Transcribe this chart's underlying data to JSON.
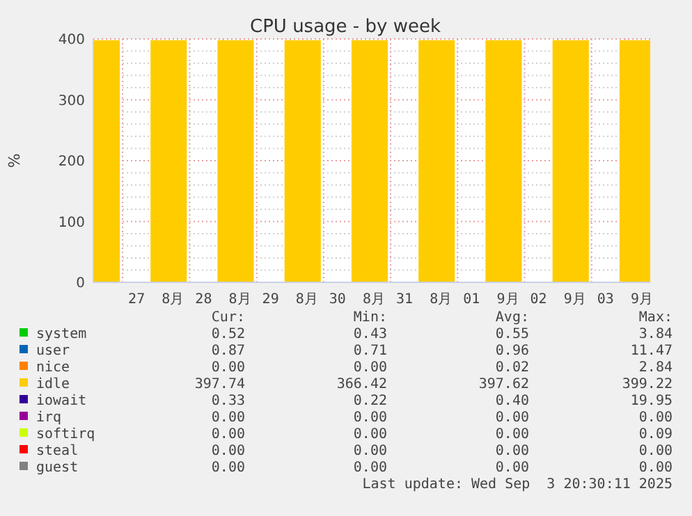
{
  "chart_data": {
    "type": "area",
    "title": "CPU usage - by week",
    "ylabel": "%",
    "legend": "bottom",
    "grid": true,
    "x": [
      "2025-08-26T13:30",
      "2025-08-26T18:00",
      "2025-08-26T23:00",
      "2025-08-27T04:00",
      "2025-08-27T10:00",
      "2025-08-27T16:30",
      "2025-08-27T23:00",
      "2025-08-28T04:00",
      "2025-08-28T10:00",
      "2025-08-28T16:30",
      "2025-08-28T23:00",
      "2025-08-29T04:00",
      "2025-08-29T10:00",
      "2025-08-29T16:30",
      "2025-08-29T23:00",
      "2025-08-30T04:00",
      "2025-08-30T10:00",
      "2025-08-30T16:30",
      "2025-08-30T23:00",
      "2025-08-31T04:00",
      "2025-08-31T10:00",
      "2025-08-31T16:30",
      "2025-08-31T23:00",
      "2025-09-01T04:00",
      "2025-09-01T10:00",
      "2025-09-01T16:30",
      "2025-09-01T23:00",
      "2025-09-02T04:00",
      "2025-09-02T10:00",
      "2025-09-02T16:30",
      "2025-09-02T23:00",
      "2025-09-03T04:00",
      "2025-09-03T10:00",
      "2025-09-03T16:30",
      "2025-09-03T21:00"
    ],
    "xlim": [
      "2025-08-26T13:30",
      "2025-09-03T21:00"
    ],
    "xticks": [
      {
        "value": "2025-08-27T00:00",
        "label": null
      },
      {
        "value": "2025-08-27T12:00",
        "label": "27  8月"
      },
      {
        "value": "2025-08-28T00:00",
        "label": null
      },
      {
        "value": "2025-08-28T12:00",
        "label": "28  8月"
      },
      {
        "value": "2025-08-29T00:00",
        "label": null
      },
      {
        "value": "2025-08-29T12:00",
        "label": "29  8月"
      },
      {
        "value": "2025-08-30T00:00",
        "label": null
      },
      {
        "value": "2025-08-30T12:00",
        "label": "30  8月"
      },
      {
        "value": "2025-08-31T00:00",
        "label": null
      },
      {
        "value": "2025-08-31T12:00",
        "label": "31  8月"
      },
      {
        "value": "2025-09-01T00:00",
        "label": null
      },
      {
        "value": "2025-09-01T12:00",
        "label": "01  9月"
      },
      {
        "value": "2025-09-02T00:00",
        "label": null
      },
      {
        "value": "2025-09-02T12:00",
        "label": "02  9月"
      },
      {
        "value": "2025-09-03T00:00",
        "label": null
      },
      {
        "value": "2025-09-03T12:00",
        "label": "03  9月"
      }
    ],
    "ylim": [
      0,
      400
    ],
    "yticks": [
      0,
      {
        "value": 20,
        "label": null
      },
      {
        "value": 40,
        "label": null
      },
      {
        "value": 60,
        "label": null
      },
      {
        "value": 80,
        "label": null
      },
      100,
      {
        "value": 120,
        "label": null
      },
      {
        "value": 140,
        "label": null
      },
      {
        "value": 160,
        "label": null
      },
      {
        "value": 180,
        "label": null
      },
      200,
      {
        "value": 220,
        "label": null
      },
      {
        "value": 240,
        "label": null
      },
      {
        "value": 260,
        "label": null
      },
      {
        "value": 280,
        "label": null
      },
      300,
      {
        "value": 320,
        "label": null
      },
      {
        "value": 340,
        "label": null
      },
      {
        "value": 360,
        "label": null
      },
      {
        "value": 380,
        "label": null
      },
      400
    ],
    "series": [
      {
        "name": "system",
        "color": "#00cc00",
        "values": [
          null,
          null,
          null,
          null,
          null,
          null,
          null,
          null,
          null,
          null,
          null,
          null,
          null,
          null,
          null,
          null,
          null,
          null,
          null,
          null,
          null,
          null,
          null,
          null,
          null,
          null,
          null,
          null,
          null,
          null,
          null,
          null,
          null,
          null,
          null
        ]
      },
      {
        "name": "user",
        "color": "#0066b3",
        "values": [
          null,
          null,
          null,
          null,
          null,
          null,
          null,
          null,
          null,
          null,
          null,
          null,
          null,
          null,
          null,
          null,
          null,
          null,
          null,
          null,
          null,
          null,
          null,
          null,
          null,
          null,
          null,
          null,
          null,
          null,
          null,
          null,
          null,
          null,
          null
        ]
      },
      {
        "name": "nice",
        "color": "#ff8000",
        "values": [
          null,
          null,
          null,
          null,
          null,
          null,
          null,
          null,
          null,
          null,
          null,
          null,
          null,
          null,
          null,
          null,
          null,
          null,
          null,
          null,
          null,
          null,
          null,
          null,
          null,
          null,
          null,
          null,
          null,
          null,
          null,
          null,
          null,
          null,
          null
        ]
      },
      {
        "name": "idle",
        "color": "#ffcc00",
        "values": [
          398,
          398,
          398,
          null,
          398,
          398,
          398,
          null,
          398,
          398,
          398,
          null,
          398,
          398,
          398,
          null,
          398,
          398,
          398,
          null,
          398,
          398,
          398,
          null,
          398,
          398,
          398,
          null,
          398,
          398,
          398,
          null,
          398,
          398,
          398
        ]
      },
      {
        "name": "iowait",
        "color": "#330099",
        "values": [
          null,
          null,
          null,
          null,
          null,
          null,
          null,
          null,
          null,
          null,
          null,
          null,
          null,
          null,
          null,
          null,
          null,
          null,
          null,
          null,
          null,
          null,
          null,
          null,
          null,
          null,
          null,
          null,
          null,
          null,
          null,
          null,
          null,
          null,
          null
        ]
      },
      {
        "name": "irq",
        "color": "#990099",
        "values": [
          null,
          null,
          null,
          null,
          null,
          null,
          null,
          null,
          null,
          null,
          null,
          null,
          null,
          null,
          null,
          null,
          null,
          null,
          null,
          null,
          null,
          null,
          null,
          null,
          null,
          null,
          null,
          null,
          null,
          null,
          null,
          null,
          null,
          null,
          null
        ]
      },
      {
        "name": "softirq",
        "color": "#ccff00",
        "values": [
          null,
          null,
          null,
          null,
          null,
          null,
          null,
          null,
          null,
          null,
          null,
          null,
          null,
          null,
          null,
          null,
          null,
          null,
          null,
          null,
          null,
          null,
          null,
          null,
          null,
          null,
          null,
          null,
          null,
          null,
          null,
          null,
          null,
          null,
          null
        ]
      },
      {
        "name": "steal",
        "color": "#ff0000",
        "values": [
          null,
          null,
          null,
          null,
          null,
          null,
          null,
          null,
          null,
          null,
          null,
          null,
          null,
          null,
          null,
          null,
          null,
          null,
          null,
          null,
          null,
          null,
          null,
          null,
          null,
          null,
          null,
          null,
          null,
          null,
          null,
          null,
          null,
          null,
          null
        ]
      },
      {
        "name": "guest",
        "color": "#808080",
        "values": [
          null,
          null,
          null,
          null,
          null,
          null,
          null,
          null,
          null,
          null,
          null,
          null,
          null,
          null,
          null,
          null,
          null,
          null,
          null,
          null,
          null,
          null,
          null,
          null,
          null,
          null,
          null,
          null,
          null,
          null,
          null,
          null,
          null,
          null,
          null
        ]
      }
    ],
    "annotations": [
      "Cur:",
      "Min:",
      "Avg:",
      "Max:",
      "0.52",
      "0.43",
      "0.55",
      "3.84",
      "0.87",
      "0.71",
      "0.96",
      "11.47",
      "0.00",
      "0.00",
      "0.02",
      "2.84",
      "397.74",
      "366.42",
      "397.62",
      "399.22",
      "0.33",
      "0.22",
      "0.40",
      "19.95",
      "0.00",
      "0.00",
      "0.00",
      "0.00",
      "0.00",
      "0.00",
      "0.00",
      "0.09",
      "0.00",
      "0.00",
      "0.00",
      "0.00",
      "0.00",
      "0.00",
      "0.00",
      "0.00",
      "Last update: Wed Sep  3 20:30:11 2025"
    ]
  }
}
